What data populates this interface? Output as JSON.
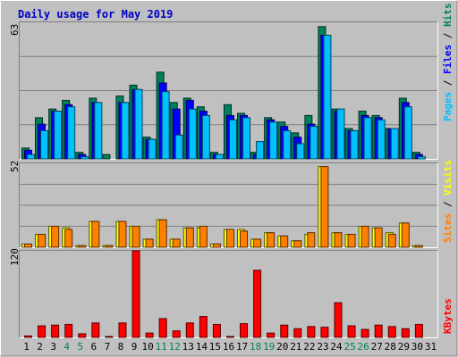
{
  "chart_data": [
    {
      "type": "bar",
      "title": "Daily usage for May 2019",
      "categories": [
        "1",
        "2",
        "3",
        "4",
        "5",
        "6",
        "7",
        "8",
        "9",
        "10",
        "11",
        "12",
        "13",
        "14",
        "15",
        "16",
        "17",
        "18",
        "19",
        "20",
        "21",
        "22",
        "23",
        "24",
        "25",
        "26",
        "27",
        "28",
        "29",
        "30",
        "31"
      ],
      "weekend_days": [
        "4",
        "5",
        "11",
        "12",
        "18",
        "19",
        "25",
        "26"
      ],
      "ylim": [
        0,
        63
      ],
      "ymax_label": "63",
      "legend": {
        "pages": "Pages",
        "files": "Files",
        "hits": "Hits",
        "sep": " / "
      },
      "series": [
        {
          "name": "Hits",
          "color": "#00805c",
          "values": [
            5,
            19,
            23,
            27,
            3,
            28,
            2,
            29,
            34,
            10,
            40,
            26,
            28,
            24,
            3,
            25,
            21,
            3,
            19,
            17,
            12,
            20,
            61,
            23,
            14,
            22,
            20,
            14,
            28,
            3,
            0
          ]
        },
        {
          "name": "Files",
          "color": "#0000ff",
          "values": [
            4,
            16,
            22,
            25,
            2,
            26,
            0,
            26,
            32,
            9,
            35,
            23,
            27,
            22,
            2,
            20,
            20,
            2,
            18,
            15,
            10,
            16,
            57,
            22,
            13,
            20,
            19,
            14,
            26,
            2,
            0
          ]
        },
        {
          "name": "Pages",
          "color": "#00c0ff",
          "values": [
            2,
            13,
            22,
            24,
            1,
            26,
            0,
            26,
            32,
            9,
            31,
            11,
            23,
            20,
            2,
            18,
            19,
            8,
            17,
            13,
            7,
            15,
            57,
            23,
            13,
            19,
            18,
            14,
            24,
            1,
            0
          ]
        }
      ]
    },
    {
      "type": "bar",
      "categories": [
        "1",
        "2",
        "3",
        "4",
        "5",
        "6",
        "7",
        "8",
        "9",
        "10",
        "11",
        "12",
        "13",
        "14",
        "15",
        "16",
        "17",
        "18",
        "19",
        "20",
        "21",
        "22",
        "23",
        "24",
        "25",
        "26",
        "27",
        "28",
        "29",
        "30",
        "31"
      ],
      "ylim": [
        0,
        52
      ],
      "ymax_label": "52",
      "legend": {
        "sites": "Sites",
        "visits": "Visits",
        "sep": " / "
      },
      "series": [
        {
          "name": "Sites",
          "color": "#ffff00",
          "values": [
            2,
            8,
            13,
            12,
            1,
            16,
            1,
            16,
            13,
            5,
            17,
            5,
            12,
            12,
            2,
            11,
            11,
            5,
            9,
            7,
            4,
            8,
            50,
            9,
            8,
            13,
            12,
            9,
            15,
            1,
            0
          ]
        },
        {
          "name": "Visits",
          "color": "#ff8000",
          "values": [
            2,
            8,
            13,
            11,
            1,
            16,
            1,
            16,
            13,
            5,
            17,
            5,
            12,
            13,
            2,
            11,
            10,
            5,
            9,
            7,
            4,
            9,
            50,
            9,
            8,
            13,
            12,
            8,
            15,
            1,
            0
          ]
        }
      ]
    },
    {
      "type": "bar",
      "categories": [
        "1",
        "2",
        "3",
        "4",
        "5",
        "6",
        "7",
        "8",
        "9",
        "10",
        "11",
        "12",
        "13",
        "14",
        "15",
        "16",
        "17",
        "18",
        "19",
        "20",
        "21",
        "22",
        "23",
        "24",
        "25",
        "26",
        "27",
        "28",
        "29",
        "30",
        "31"
      ],
      "ylim": [
        0,
        120
      ],
      "ymax_label": "120",
      "legend": {
        "kbytes": "KBytes"
      },
      "series": [
        {
          "name": "KBytes",
          "color": "#ff0000",
          "values": [
            2,
            16,
            17,
            18,
            5,
            20,
            1,
            20,
            120,
            6,
            26,
            9,
            20,
            29,
            18,
            1,
            19,
            93,
            6,
            17,
            12,
            15,
            14,
            48,
            16,
            11,
            17,
            15,
            12,
            18,
            0
          ]
        }
      ]
    }
  ]
}
